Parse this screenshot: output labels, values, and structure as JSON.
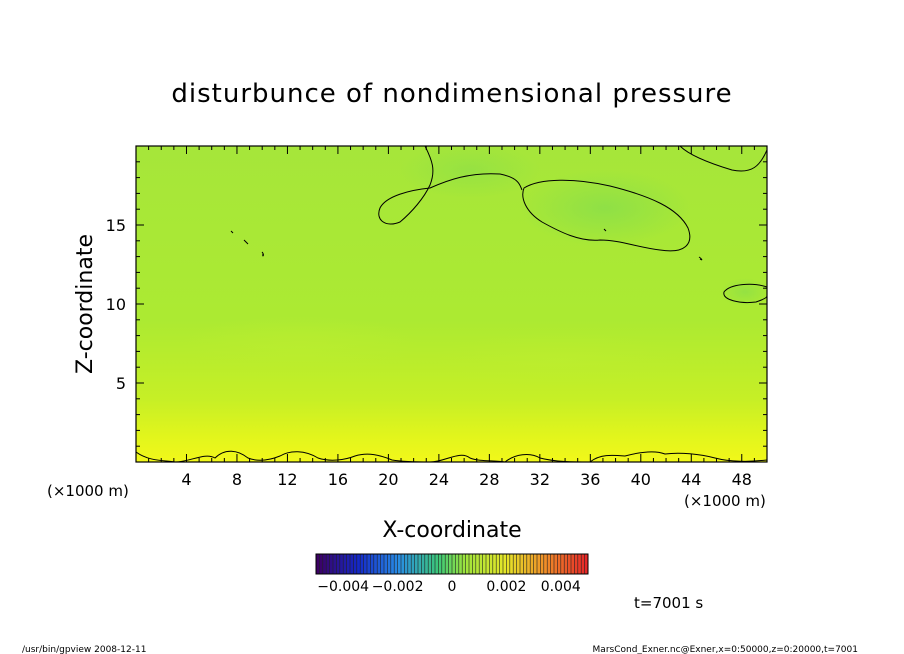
{
  "chart_data": {
    "type": "heatmap",
    "title": "disturbunce of nondimensional pressure",
    "xlabel": "X-coordinate",
    "ylabel": "Z-coordinate",
    "x_unit_left": "(×1000 m)",
    "x_unit_right": "(×1000 m)",
    "xlim": [
      0,
      50
    ],
    "ylim": [
      0,
      20
    ],
    "x_ticks": [
      4,
      8,
      12,
      16,
      20,
      24,
      28,
      32,
      36,
      40,
      44,
      48
    ],
    "y_ticks": [
      5,
      10,
      15
    ],
    "colorbar": {
      "min": -0.005,
      "max": 0.005,
      "tick_labels": [
        "−0.004",
        "−0.002",
        "0",
        "0.002",
        "0.004"
      ],
      "tick_values": [
        -0.004,
        -0.002,
        0,
        0.002,
        0.004
      ]
    },
    "field_summary": {
      "surface_value": 0.0015,
      "interior_value": 0.0009,
      "upper_value": 0.0008,
      "zero_contour_regions": [
        "bottom boundary near z≈0",
        "upper right near x≈30–43, z≈14–18",
        "top near x≈20–30, z≈15–19",
        "right edge near x≈46–50, z≈10"
      ]
    },
    "time_label": "t=7001 s"
  },
  "footer": {
    "left": "/usr/bin/gpview   2008-12-11",
    "right": "MarsCond_Exner.nc@Exner,x=0:50000,z=0:20000,t=7001"
  }
}
